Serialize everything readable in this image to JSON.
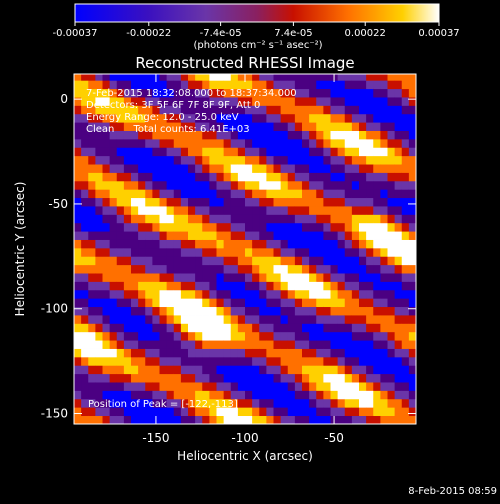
{
  "colorbar": {
    "tick_labels": [
      "-0.00037",
      "-0.00022",
      "-7.4e-05",
      "7.4e-05",
      "0.00022",
      "0.00037"
    ],
    "tick_values": [
      -0.00037,
      -0.00022,
      -7.4e-05,
      7.4e-05,
      0.00022,
      0.00037
    ],
    "range": [
      -0.00037,
      0.00037
    ],
    "units_label": "(photons cm⁻² s⁻¹ asec⁻²)",
    "colors": [
      "#0000ff",
      "#4b0082",
      "#6a35a8",
      "#c81000",
      "#ff7000",
      "#ffd000",
      "#ffffff"
    ]
  },
  "chart_data": {
    "type": "heatmap",
    "title": "Reconstructed RHESSI Image",
    "xlabel": "Heliocentric X (arcsec)",
    "ylabel": "Heliocentric Y (arcsec)",
    "xlim": [
      -196,
      -4
    ],
    "ylim": [
      -155,
      12
    ],
    "x_ticks": [
      -150,
      -100,
      -50
    ],
    "y_ticks": [
      0,
      -50,
      -100,
      -150
    ],
    "annotations": [
      "7-Feb-2015 18:32:08.000 to 18:37:34.000",
      "Detectors: 3F 5F 6F 7F 8F 9F, Att 0",
      "Energy Range: 12.0 - 25.0 keV",
      "Clean      Total counts: 6.41E+03"
    ],
    "peak_label": "Position of Peak = [-122,-113]",
    "peak_position": [
      -122,
      -113
    ],
    "total_counts": 6410,
    "energy_range_kev": [
      12.0,
      25.0
    ]
  },
  "footer": {
    "timestamp": "8-Feb-2015 08:59"
  }
}
